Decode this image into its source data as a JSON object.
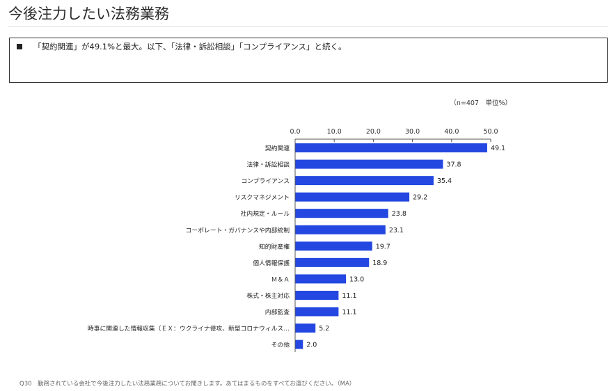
{
  "page": {
    "title": "今後注力したい法務業務",
    "summary": "「契約関連」が49.1%と最大。以下、「法律・訴訟相談」「コンプライアンス」と続く。",
    "unit_note": "（n=407　単位%）",
    "footnote": "Q30　勤務されている会社で今後注力したい法務業務についてお聞きします。あてはまるものをすべてお選びください。（MA）"
  },
  "colors": {
    "bar": "#2347e0",
    "axis": "#555555",
    "grid": "#d9d9d9"
  },
  "chart_data": {
    "type": "bar",
    "orientation": "horizontal",
    "title": "今後注力したい法務業務",
    "xlabel": "",
    "ylabel": "",
    "xlim": [
      0,
      50
    ],
    "ticks": [
      0,
      10,
      20,
      30,
      40,
      50
    ],
    "tick_labels": [
      "0.0",
      "10.0",
      "20.0",
      "30.0",
      "40.0",
      "50.0"
    ],
    "grid": false,
    "categories": [
      "契約関連",
      "法律・訴訟相談",
      "コンプライアンス",
      "リスクマネジメント",
      "社内規定・ルール",
      "コーポレート・ガバナンスや内部統制",
      "知的財産権",
      "個人情報保護",
      "Ｍ＆Ａ",
      "株式・株主対応",
      "内部監査",
      "時事に関連した情報収集（ＥＸ：ウクライナ侵攻、新型コロナウィルス…",
      "その他"
    ],
    "values": [
      49.1,
      37.8,
      35.4,
      29.2,
      23.8,
      23.1,
      19.7,
      18.9,
      13.0,
      11.1,
      11.1,
      5.2,
      2.0
    ],
    "value_labels": [
      "49.1",
      "37.8",
      "35.4",
      "29.2",
      "23.8",
      "23.1",
      "19.7",
      "18.9",
      "13.0",
      "11.1",
      "11.1",
      "5.2",
      "2.0"
    ]
  }
}
